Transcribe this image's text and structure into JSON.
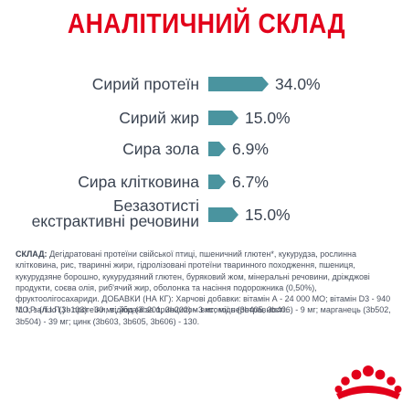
{
  "title": "АНАЛІТИЧНИЙ СКЛАД",
  "nutrients": [
    {
      "label": "Сирий протеїн",
      "value": "34.0%",
      "percent": 34.0
    },
    {
      "label": "Сирий жир",
      "value": "15.0%",
      "percent": 15.0
    },
    {
      "label": "Сира зола",
      "value": "6.9%",
      "percent": 6.9
    },
    {
      "label": "Сира клітковина",
      "value": "6.7%",
      "percent": 6.7
    },
    {
      "label_line1": "Безазотисті",
      "label_line2": "екстрактивні речовини",
      "value": "15.0%",
      "percent": 15.0
    }
  ],
  "composition": {
    "heading": "СКЛАД:",
    "text": " Дегідратовані протеїни свійської птиці, пшеничний глютен*, кукурудза, рослинна клітковина, рис, тваринні жири, гідролізовані протеїни тваринного походження, пшениця, кукурудзяне борошно, кукурудзяний глютен, буряковий жом, мінеральні речовини, дріжджові продукти, соєва олія, риб'ячий жир, оболонка та насіння подорожника (0,50%), фруктоолігосахариди. ДОБАВКИ (НА КГ): Харчові добавки: вітамін А - 24 000 МО; вітамін D3 - 940 МО; залізо (3b103) - 30 мг; йод (3b201, 3b202) - 3 мг; мідь (3b405, 3b406) - 9 мг; марганець (3b502, 3b504) - 39 мг; цинк (3b603, 3b605, 3b606) - 130."
  },
  "footnote": "*L.I.P. (Л.І.П.) - протеїни, відібрані за принципом високої перетравності.",
  "colors": {
    "title": "#e2001a",
    "bar": "#4a949f",
    "text": "#3b4452",
    "logo": "#e2001a"
  },
  "logo_icon": "royal-canin-crown-logo"
}
